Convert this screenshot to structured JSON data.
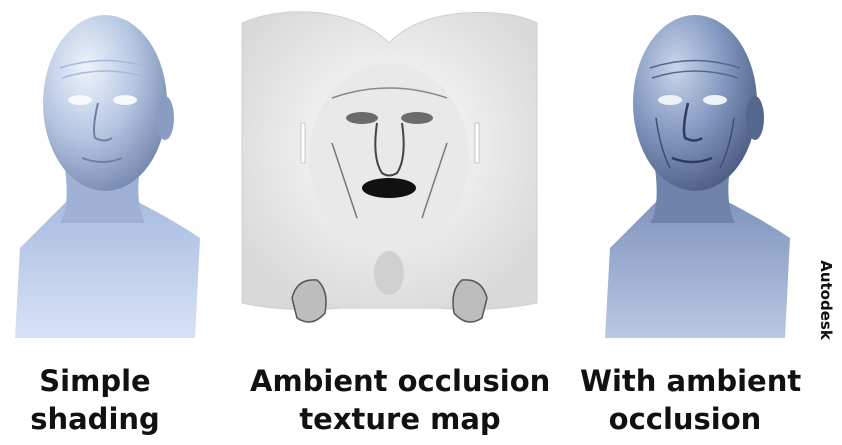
{
  "panels": [
    {
      "caption_line1": "Simple",
      "caption_line2": "shading"
    },
    {
      "caption_line1": "Ambient occlusion",
      "caption_line2": "texture map"
    },
    {
      "caption_line1": "With ambient",
      "caption_line2": "occlusion"
    }
  ],
  "credit": "Autodesk",
  "colors": {
    "skin_light": "#dbe6f4",
    "skin_mid": "#9fb4d6",
    "skin_dark": "#5a6c93",
    "ao_background": "#f3f3f3",
    "ao_dark": "#222222"
  }
}
